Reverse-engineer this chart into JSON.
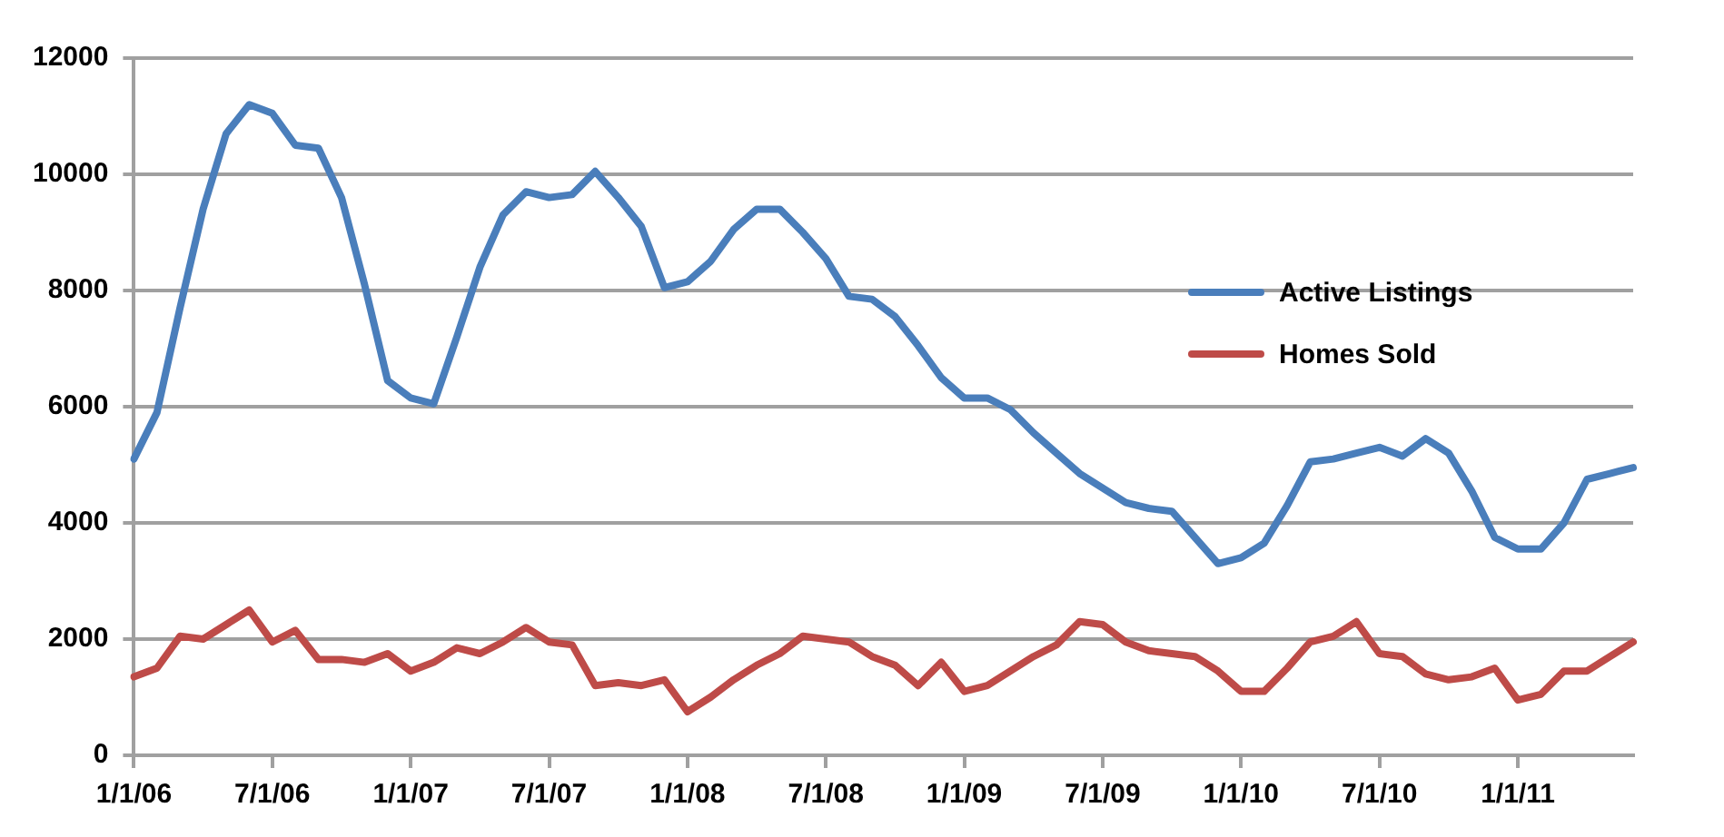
{
  "chart_data": {
    "type": "line",
    "categories": [
      "1/1/06",
      null,
      null,
      null,
      null,
      null,
      "7/1/06",
      null,
      null,
      null,
      null,
      null,
      "1/1/07",
      null,
      null,
      null,
      null,
      null,
      "7/1/07",
      null,
      null,
      null,
      null,
      null,
      "1/1/08",
      null,
      null,
      null,
      null,
      null,
      "7/1/08",
      null,
      null,
      null,
      null,
      null,
      "1/1/09",
      null,
      null,
      null,
      null,
      null,
      "7/1/09",
      null,
      null,
      null,
      null,
      null,
      "1/1/10",
      null,
      null,
      null,
      null,
      null,
      "7/1/10",
      null,
      null,
      null,
      null,
      null,
      "1/1/11",
      null,
      null,
      null,
      null,
      null
    ],
    "series": [
      {
        "name": "Active Listings",
        "color": "#4a7ebb",
        "values": [
          5100,
          5900,
          7700,
          9400,
          10700,
          11200,
          11050,
          10500,
          10450,
          9600,
          8100,
          6450,
          6150,
          6050,
          7200,
          8400,
          9300,
          9700,
          9600,
          9650,
          10050,
          9600,
          9100,
          8050,
          8150,
          8500,
          9050,
          9400,
          9400,
          9000,
          8550,
          7900,
          7850,
          7550,
          7050,
          6500,
          6150,
          6150,
          5950,
          5550,
          5200,
          4850,
          4600,
          4350,
          4250,
          4200,
          3750,
          3300,
          3400,
          3650,
          4300,
          5050,
          5100,
          5200,
          5300,
          5150,
          5450,
          5200,
          4550,
          3750,
          3550,
          3550,
          4000,
          4750,
          4850,
          4950
        ]
      },
      {
        "name": "Homes Sold",
        "color": "#be4b48",
        "values": [
          1350,
          1500,
          2050,
          2000,
          2250,
          2500,
          1950,
          2150,
          1650,
          1650,
          1600,
          1750,
          1450,
          1600,
          1850,
          1750,
          1950,
          2200,
          1950,
          1900,
          1200,
          1250,
          1200,
          1300,
          750,
          1000,
          1300,
          1550,
          1750,
          2050,
          2000,
          1950,
          1700,
          1550,
          1200,
          1600,
          1100,
          1200,
          1450,
          1700,
          1900,
          2300,
          2250,
          1950,
          1800,
          1750,
          1700,
          1450,
          1100,
          1100,
          1500,
          1950,
          2050,
          2300,
          1750,
          1700,
          1400,
          1300,
          1350,
          1500,
          950,
          1050,
          1450,
          1450,
          1700,
          1950
        ]
      }
    ],
    "ylim": [
      0,
      12000
    ],
    "yticks": [
      0,
      2000,
      4000,
      6000,
      8000,
      10000,
      12000
    ],
    "grid": "y",
    "legend": "right",
    "marker": "none",
    "line_style": "solid"
  }
}
